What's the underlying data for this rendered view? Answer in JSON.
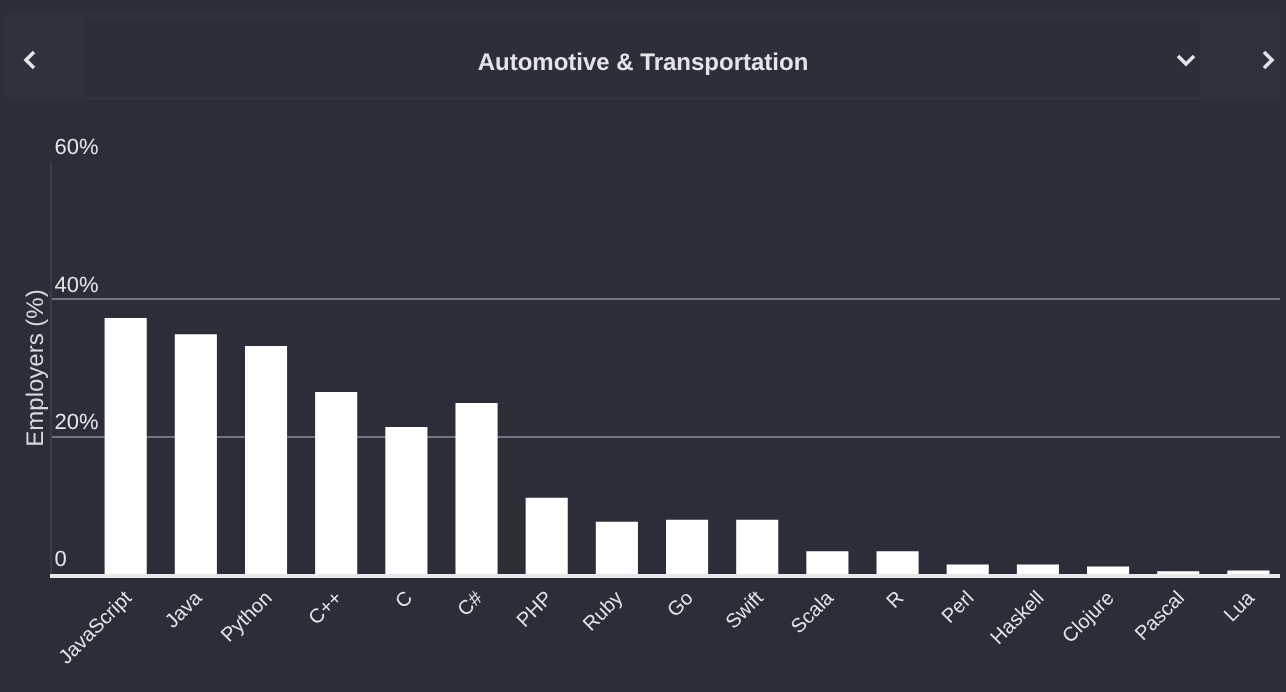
{
  "chart_data": {
    "type": "bar",
    "title": "Automotive & Transportation",
    "ylabel": "Employers (%)",
    "categories": [
      "JavaScript",
      "Java",
      "Python",
      "C++",
      "C",
      "C#",
      "PHP",
      "Ruby",
      "Go",
      "Swift",
      "Scala",
      "R",
      "Perl",
      "Haskell",
      "Clojure",
      "Pascal",
      "Lua"
    ],
    "values": [
      37.3,
      34.9,
      33.2,
      26.5,
      21.4,
      24.9,
      11.1,
      7.6,
      7.9,
      7.9,
      3.3,
      3.3,
      1.4,
      1.4,
      1.1,
      0.4,
      0.5
    ],
    "color": "#ffffff",
    "ylim": [
      0,
      60
    ],
    "yticks": [
      {
        "value": 0,
        "label": "0"
      },
      {
        "value": 20,
        "label": "20%"
      },
      {
        "value": 40,
        "label": "40%"
      },
      {
        "value": 60,
        "label": "60%"
      }
    ],
    "grid": "y"
  }
}
